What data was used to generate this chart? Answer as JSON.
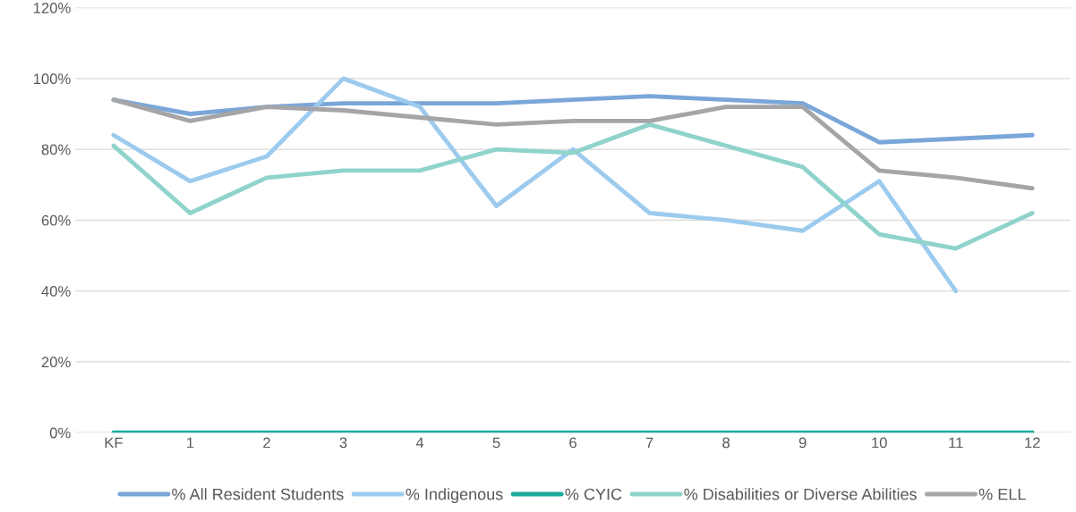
{
  "chart_data": {
    "type": "line",
    "categories": [
      "KF",
      "1",
      "2",
      "3",
      "4",
      "5",
      "6",
      "7",
      "8",
      "9",
      "10",
      "11",
      "12"
    ],
    "series": [
      {
        "name": "% All Resident Students",
        "color": "#7aa6d8",
        "values": [
          94,
          90,
          92,
          93,
          93,
          93,
          94,
          95,
          94,
          93,
          82,
          83,
          84
        ]
      },
      {
        "name": "% Indigenous",
        "color": "#9ccbee",
        "values": [
          84,
          71,
          78,
          100,
          92,
          64,
          80,
          62,
          60,
          57,
          71,
          40,
          null
        ]
      },
      {
        "name": "% CYIC",
        "color": "#1aab9b",
        "values": [
          0,
          0,
          0,
          0,
          0,
          0,
          0,
          0,
          0,
          0,
          0,
          0,
          0
        ]
      },
      {
        "name": "% Disabilities or Diverse Abilities",
        "color": "#8fd3cc",
        "values": [
          81,
          62,
          72,
          74,
          74,
          80,
          79,
          87,
          81,
          75,
          56,
          52,
          62
        ]
      },
      {
        "name": "% ELL",
        "color": "#a5a5a8",
        "values": [
          94,
          88,
          92,
          91,
          89,
          87,
          88,
          88,
          92,
          92,
          74,
          72,
          69
        ]
      }
    ],
    "ylim": [
      0,
      120
    ],
    "yticks": [
      {
        "value": 0,
        "label": "0%"
      },
      {
        "value": 20,
        "label": "20%"
      },
      {
        "value": 40,
        "label": "40%"
      },
      {
        "value": 60,
        "label": "60%"
      },
      {
        "value": 80,
        "label": "80%"
      },
      {
        "value": 100,
        "label": "100%"
      },
      {
        "value": 120,
        "label": "120%"
      }
    ],
    "grid": "y",
    "legend": "bottom",
    "line_style": "solid",
    "marker": "none"
  }
}
